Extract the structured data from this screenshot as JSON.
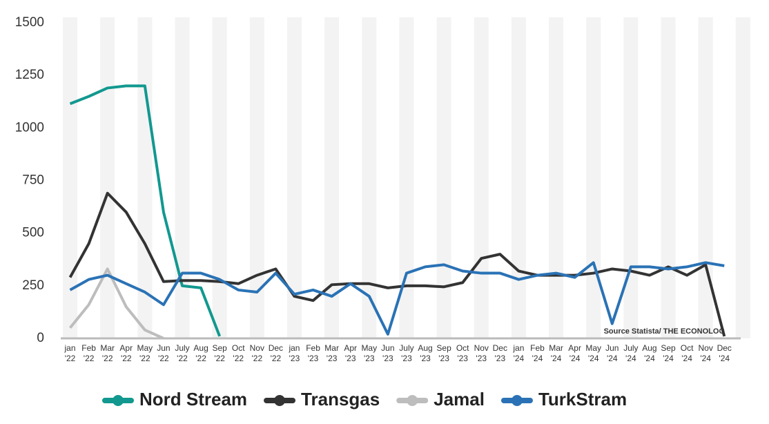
{
  "chart_data": {
    "type": "line",
    "categories": [
      "jan '22",
      "Feb '22",
      "Mar '22",
      "Apr '22",
      "May '22",
      "Jun '22",
      "July '22",
      "Aug '22",
      "Sep '22",
      "Oct '22",
      "Nov '22",
      "Dec '22",
      "jan '23",
      "Feb '23",
      "Mar '23",
      "Apr '23",
      "May '23",
      "Jun '23",
      "July '23",
      "Aug '23",
      "Sep '23",
      "Oct '23",
      "Nov '23",
      "Dec '23",
      "jan '24",
      "Feb '24",
      "Mar '24",
      "Apr '24",
      "May '24",
      "Jun '24",
      "July '24",
      "Aug '24",
      "Sep '24",
      "Oct '24",
      "Nov '24",
      "Dec '24"
    ],
    "series": [
      {
        "name": "Nord Stream",
        "color": "#12988f",
        "values": [
          1115,
          1150,
          1190,
          1200,
          1200,
          600,
          250,
          240,
          10,
          null,
          null,
          null,
          null,
          null,
          null,
          null,
          null,
          null,
          null,
          null,
          null,
          null,
          null,
          null,
          null,
          null,
          null,
          null,
          null,
          null,
          null,
          null,
          null,
          null,
          null,
          null
        ]
      },
      {
        "name": "Transgas",
        "color": "#333333",
        "values": [
          290,
          450,
          690,
          600,
          450,
          270,
          275,
          275,
          270,
          260,
          300,
          330,
          200,
          180,
          255,
          260,
          260,
          240,
          250,
          250,
          245,
          265,
          380,
          400,
          320,
          300,
          300,
          300,
          310,
          330,
          320,
          300,
          340,
          300,
          350,
          10
        ]
      },
      {
        "name": "Jamal",
        "color": "#bdbdbd",
        "values": [
          50,
          160,
          330,
          150,
          40,
          0,
          null,
          null,
          null,
          null,
          null,
          null,
          null,
          null,
          null,
          null,
          null,
          null,
          null,
          null,
          null,
          null,
          null,
          null,
          null,
          null,
          null,
          null,
          null,
          null,
          null,
          null,
          null,
          null,
          null,
          null
        ]
      },
      {
        "name": "TurkStram",
        "color": "#2a72b5",
        "values": [
          230,
          280,
          300,
          260,
          220,
          160,
          310,
          310,
          280,
          230,
          220,
          310,
          210,
          230,
          200,
          260,
          200,
          20,
          310,
          340,
          350,
          320,
          310,
          310,
          280,
          300,
          310,
          290,
          360,
          70,
          340,
          340,
          330,
          340,
          360,
          345
        ]
      }
    ],
    "ylim": [
      0,
      1500
    ],
    "yticks": [
      0,
      250,
      500,
      750,
      1000,
      1250,
      1500
    ],
    "annotation": "Source  Statista/ THE ECONOLOG"
  }
}
